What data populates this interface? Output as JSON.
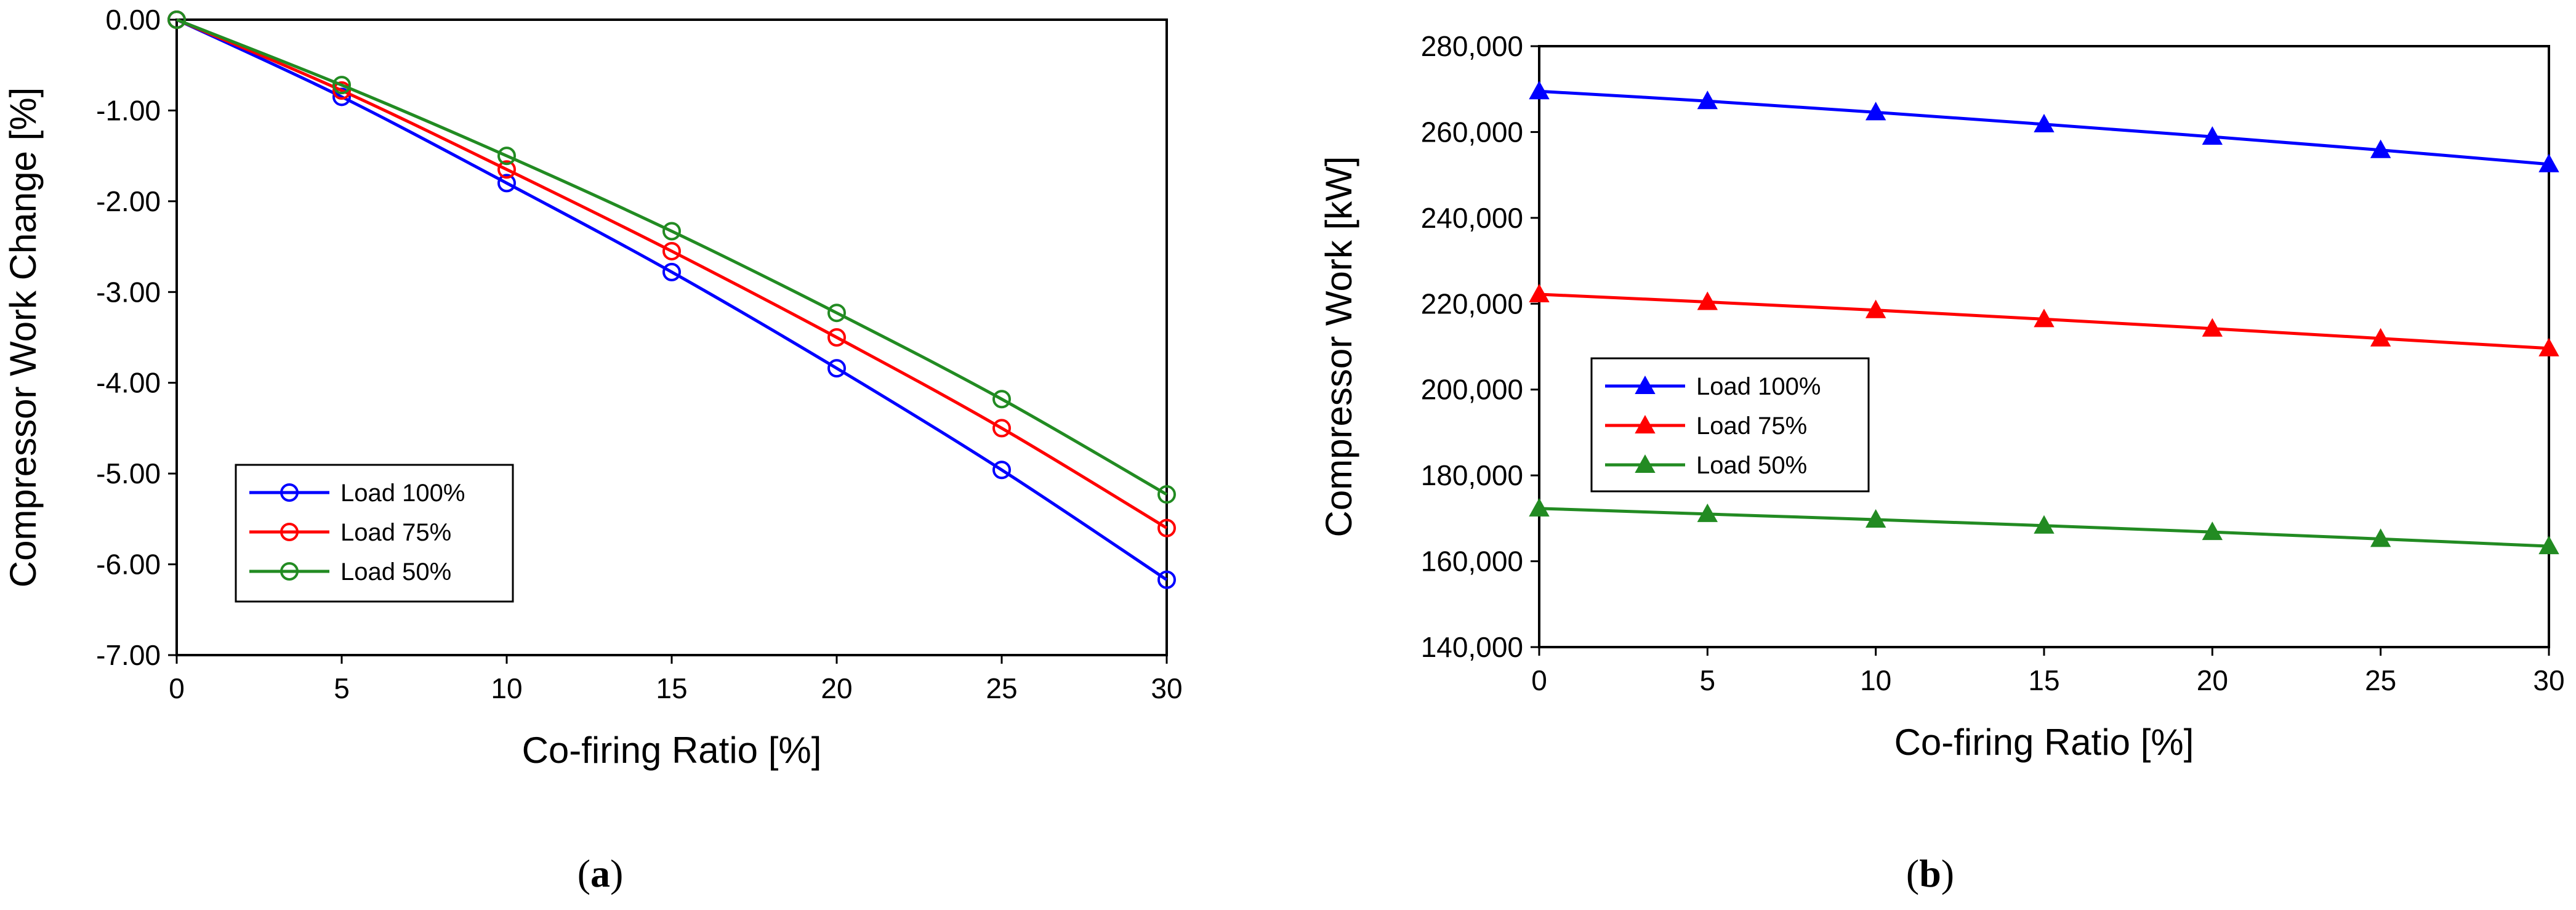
{
  "chart_data": [
    {
      "type": "line",
      "caption_letter": "a",
      "xlabel": "Co-firing Ratio [%]",
      "ylabel": "Compressor Work Change [%]",
      "x": [
        0,
        5,
        10,
        15,
        20,
        25,
        30
      ],
      "xlim": [
        0,
        30
      ],
      "ylim": [
        -7.0,
        0.0
      ],
      "xticks": [
        "0",
        "5",
        "10",
        "15",
        "20",
        "25",
        "30"
      ],
      "yticks": [
        "0.00",
        "-1.00",
        "-2.00",
        "-3.00",
        "-4.00",
        "-5.00",
        "-6.00",
        "-7.00"
      ],
      "marker": "circle",
      "legend_position": "lower-left",
      "series": [
        {
          "name": "Load 100%",
          "color": "#0000ff",
          "values": [
            0.0,
            -0.85,
            -1.8,
            -2.78,
            -3.84,
            -4.96,
            -6.17
          ]
        },
        {
          "name": "Load 75%",
          "color": "#ff0000",
          "values": [
            0.0,
            -0.78,
            -1.65,
            -2.55,
            -3.5,
            -4.5,
            -5.6
          ]
        },
        {
          "name": "Load 50%",
          "color": "#228b22",
          "values": [
            0.0,
            -0.72,
            -1.5,
            -2.33,
            -3.23,
            -4.18,
            -5.23
          ]
        }
      ]
    },
    {
      "type": "line",
      "caption_letter": "b",
      "xlabel": "Co-firing Ratio [%]",
      "ylabel": "Compressor Work [kW]",
      "x": [
        0,
        5,
        10,
        15,
        20,
        25,
        30
      ],
      "xlim": [
        0,
        30
      ],
      "ylim": [
        140000,
        280000
      ],
      "xticks": [
        "0",
        "5",
        "10",
        "15",
        "20",
        "25",
        "30"
      ],
      "yticks": [
        "280,000",
        "260,000",
        "240,000",
        "220,000",
        "200,000",
        "180,000",
        "160,000",
        "140,000"
      ],
      "marker": "triangle",
      "legend_position": "center-left",
      "series": [
        {
          "name": "Load 100%",
          "color": "#0000ff",
          "values": [
            269500,
            267200,
            264600,
            261800,
            258900,
            255800,
            252500
          ]
        },
        {
          "name": "Load 75%",
          "color": "#ff0000",
          "values": [
            222200,
            220400,
            218500,
            216400,
            214200,
            211900,
            209600
          ]
        },
        {
          "name": "Load 50%",
          "color": "#228b22",
          "values": [
            172300,
            171000,
            169700,
            168300,
            166800,
            165200,
            163500
          ]
        }
      ]
    }
  ]
}
